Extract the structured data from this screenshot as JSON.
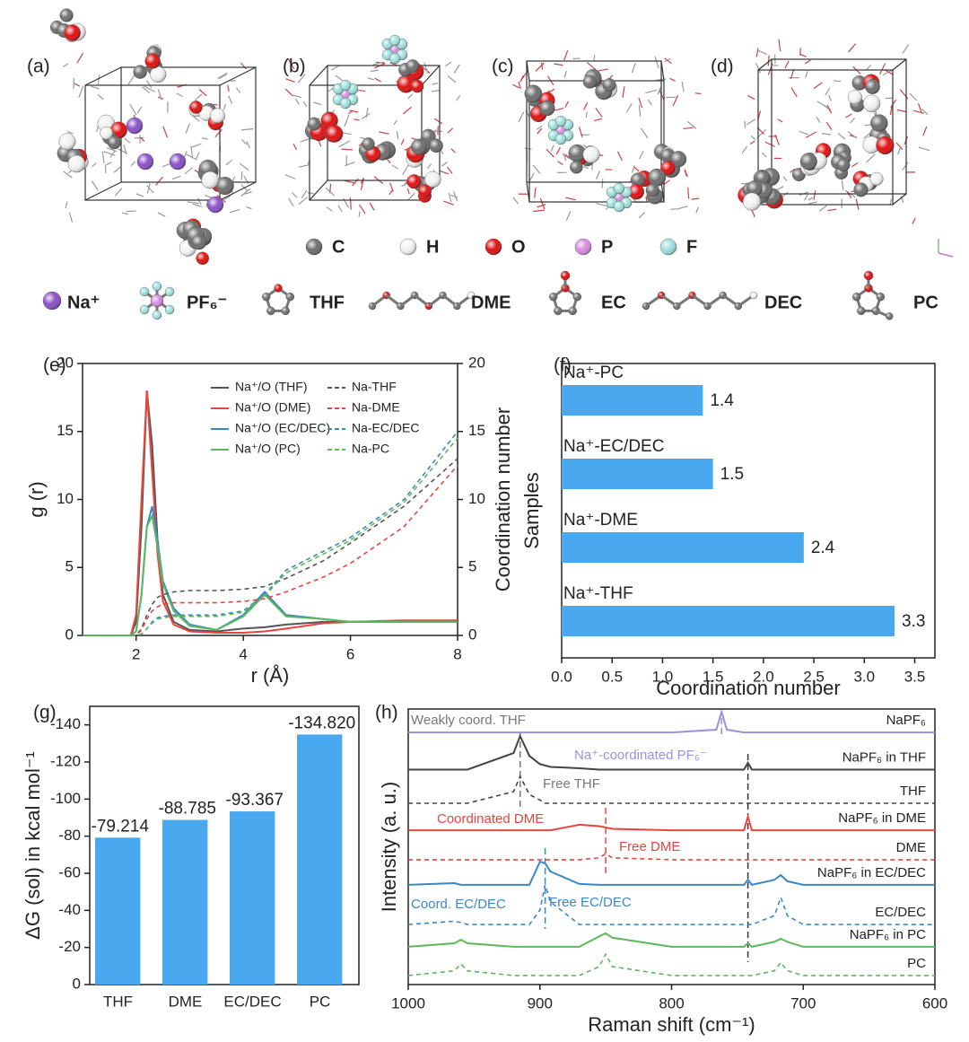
{
  "panel_labels": [
    "(a)",
    "(b)",
    "(c)",
    "(d)"
  ],
  "atom_legend": [
    {
      "label": "C",
      "color": "#6e6e6e"
    },
    {
      "label": "H",
      "color": "#f2f2f2"
    },
    {
      "label": "O",
      "color": "#e01010"
    },
    {
      "label": "P",
      "color": "#d98be0"
    },
    {
      "label": "F",
      "color": "#9fe0dc"
    }
  ],
  "molecule_legend": [
    "Na⁺",
    "PF₆⁻",
    "THF",
    "DME",
    "EC",
    "DEC",
    "PC"
  ],
  "chart_data": [
    {
      "type": "line",
      "panel": "(e)",
      "legend": "upper center",
      "xlabel": "r (Å)",
      "ylabel": "g (r)",
      "y2label": "Coordination number",
      "xlim": [
        1,
        8
      ],
      "xticks": [
        2,
        4,
        6,
        8
      ],
      "ylim": [
        0,
        20
      ],
      "yticks": [
        0,
        5,
        10,
        15,
        20
      ],
      "y2lim": [
        0,
        20
      ],
      "y2ticks": [
        0,
        5,
        10,
        15,
        20
      ],
      "x": [
        1,
        1.9,
        2.0,
        2.1,
        2.2,
        2.3,
        2.4,
        2.5,
        2.7,
        3.0,
        3.5,
        4.0,
        4.4,
        4.8,
        5.5,
        6,
        7,
        8
      ],
      "series": [
        {
          "name": "Na⁺/O (THF)",
          "color": "#555555",
          "style": "solid",
          "values": [
            0,
            0,
            1,
            8,
            18,
            14,
            7,
            3,
            1,
            0.4,
            0.3,
            0.5,
            0.6,
            0.8,
            1,
            1,
            1,
            1
          ]
        },
        {
          "name": "Na⁺/O (DME)",
          "color": "#e8453c",
          "style": "solid",
          "values": [
            0,
            0,
            1.5,
            10,
            18,
            12,
            6,
            2.5,
            0.8,
            0.3,
            0.2,
            0.2,
            0.3,
            0.5,
            0.9,
            1,
            1.1,
            1.1
          ]
        },
        {
          "name": "Na⁺/O (EC/DEC)",
          "color": "#3a87c8",
          "style": "solid",
          "values": [
            0,
            0,
            0.3,
            3,
            8,
            9.5,
            7,
            4,
            2,
            0.8,
            0.4,
            1.5,
            3.2,
            1.5,
            1.2,
            1,
            1,
            1
          ]
        },
        {
          "name": "Na⁺/O (PC)",
          "color": "#5cb85c",
          "style": "solid",
          "values": [
            0,
            0,
            0.3,
            3,
            8,
            8.8,
            6.5,
            3.8,
            1.8,
            0.7,
            0.4,
            1.4,
            3,
            1.4,
            1.2,
            1,
            1,
            1
          ]
        },
        {
          "name": "Na-THF",
          "color": "#555555",
          "style": "dashed",
          "axis": "y2",
          "values": [
            0,
            0,
            0,
            0.5,
            1.5,
            2.3,
            2.8,
            3.0,
            3.2,
            3.3,
            3.3,
            3.4,
            3.6,
            4.2,
            5.5,
            6.8,
            9.5,
            13
          ]
        },
        {
          "name": "Na-DME",
          "color": "#e8453c",
          "style": "dashed",
          "axis": "y2",
          "values": [
            0,
            0,
            0,
            0.4,
            1.2,
            1.8,
            2.1,
            2.3,
            2.4,
            2.4,
            2.4,
            2.5,
            2.7,
            3.2,
            4.3,
            5.3,
            8,
            12.5
          ]
        },
        {
          "name": "Na-EC/DEC",
          "color": "#3a87c8",
          "style": "dashed",
          "axis": "y2",
          "values": [
            0,
            0,
            0,
            0.1,
            0.5,
            1,
            1.3,
            1.4,
            1.5,
            1.5,
            1.5,
            1.8,
            3.0,
            4.8,
            6.2,
            7.2,
            10,
            15
          ]
        },
        {
          "name": "Na-PC",
          "color": "#5cb85c",
          "style": "dashed",
          "axis": "y2",
          "values": [
            0,
            0,
            0,
            0.1,
            0.5,
            0.9,
            1.2,
            1.3,
            1.4,
            1.4,
            1.4,
            1.7,
            2.9,
            4.6,
            6,
            7,
            9.8,
            14.5
          ]
        }
      ]
    },
    {
      "type": "barh",
      "panel": "(f)",
      "color": "#4aa8ee",
      "xlabel": "Coordination number",
      "ylabel": "Samples",
      "categories": [
        "Na⁺-PC",
        "Na⁺-EC/DEC",
        "Na⁺-DME",
        "Na⁺-THF"
      ],
      "values": [
        1.4,
        1.5,
        2.4,
        3.3
      ],
      "xlim": [
        0,
        3.7
      ],
      "xticks": [
        {
          "value": 0,
          "label": "0.0"
        },
        0.5,
        {
          "value": 1,
          "label": "1.0"
        },
        1.5,
        {
          "value": 2,
          "label": "2.0"
        },
        2.5,
        {
          "value": 3,
          "label": "3.0"
        },
        3.5
      ]
    },
    {
      "type": "bar",
      "panel": "(g)",
      "color": "#4aa8ee",
      "ylabel": "ΔG (sol) in kcal mol⁻¹",
      "categories": [
        "THF",
        "DME",
        "EC/DEC",
        "PC"
      ],
      "values": [
        -79.214,
        -88.785,
        -93.367,
        -134.82
      ],
      "value_labels": [
        "-79.214",
        "-88.785",
        "-93.367",
        "-134.820"
      ],
      "ylim": [
        0,
        -150
      ],
      "yticks": [
        0,
        -20,
        -40,
        -60,
        -80,
        -100,
        -120,
        -140
      ]
    },
    {
      "type": "line",
      "panel": "(h)",
      "legend": "series end",
      "xlabel": "Raman shift (cm⁻¹)",
      "ylabel": "Intensity (a. u.)",
      "xlim": [
        1000,
        600
      ],
      "xticks": [
        1000,
        900,
        800,
        700,
        600
      ],
      "ylim": [
        0,
        100
      ],
      "x": [
        1000,
        965,
        960,
        955,
        920,
        915,
        908,
        900,
        896,
        892,
        870,
        855,
        850,
        845,
        800,
        766,
        762,
        758,
        745,
        742,
        739,
        722,
        717,
        712,
        700,
        600
      ],
      "series": [
        {
          "name": "NaPF₆",
          "color": "#9b8fe0",
          "style": "solid",
          "values": [
            91.5,
            91.5,
            91.5,
            91.5,
            91.5,
            91.5,
            91.5,
            91.5,
            91.5,
            91.5,
            91.5,
            91.5,
            91.5,
            91.5,
            91.5,
            92.5,
            99,
            92.5,
            91.5,
            91.5,
            91.5,
            91.5,
            91.5,
            91.5,
            91.5,
            91.5
          ]
        },
        {
          "name": "NaPF₆ in THF",
          "color": "#444444",
          "style": "solid",
          "values": [
            78,
            78,
            78,
            78,
            84,
            90.2,
            83,
            80,
            79.5,
            79,
            78.5,
            78,
            78,
            78,
            78,
            78,
            78,
            78,
            78,
            80.5,
            78,
            78,
            78,
            78,
            78,
            78
          ]
        },
        {
          "name": "THF",
          "color": "#444444",
          "style": "dashed",
          "values": [
            65.8,
            65.8,
            65.8,
            65.8,
            70,
            75.6,
            69,
            67,
            65.8,
            65.8,
            65.8,
            65.8,
            65.8,
            65.8,
            65.8,
            65.8,
            65.8,
            65.8,
            65.8,
            65.8,
            65.8,
            65.8,
            65.8,
            65.8,
            65.8,
            65.8
          ]
        },
        {
          "name": "NaPF₆ in DME",
          "color": "#e8453c",
          "style": "solid",
          "values": [
            56,
            56,
            56,
            56,
            56,
            56,
            56,
            56,
            56,
            56,
            58,
            57.5,
            57,
            56.5,
            56,
            56,
            56,
            56,
            56,
            60.9,
            56,
            56,
            56,
            56,
            56,
            56
          ]
        },
        {
          "name": "DME",
          "color": "#e8453c",
          "style": "dashed",
          "values": [
            45.3,
            45.3,
            45.3,
            45.3,
            45.3,
            45.3,
            45.3,
            45.3,
            45.3,
            45.3,
            45.3,
            46,
            47.5,
            46,
            45.3,
            45.3,
            45.3,
            45.3,
            45.3,
            45.3,
            45.3,
            45.3,
            45.3,
            45.3,
            45.3,
            45.3
          ]
        },
        {
          "name": "NaPF₆ in EC/DEC",
          "color": "#3a87c8",
          "style": "solid",
          "values": [
            36.2,
            36.8,
            36.2,
            36.2,
            36.2,
            36.2,
            36.2,
            44.6,
            44,
            41,
            36.5,
            36.2,
            36.2,
            36.2,
            36.2,
            36.2,
            36.2,
            36.2,
            36.2,
            38,
            36.2,
            38,
            39.7,
            37.5,
            36.2,
            36.2
          ]
        },
        {
          "name": "EC/DEC",
          "color": "#3a87c8",
          "style": "dashed",
          "values": [
            21.8,
            23,
            22.5,
            21.8,
            21.8,
            21.8,
            21.8,
            27,
            36.2,
            30,
            21.8,
            21.8,
            21.8,
            21.8,
            21.8,
            21.8,
            21.8,
            21.8,
            21.8,
            21.8,
            21.8,
            25,
            31.6,
            25,
            21.8,
            21.8
          ]
        },
        {
          "name": "NaPF₆ in PC",
          "color": "#5cb85c",
          "style": "solid",
          "values": [
            13.7,
            15,
            16.3,
            15,
            13.7,
            13.7,
            13.7,
            13.7,
            13.7,
            13.7,
            13.7,
            17.5,
            18.6,
            17,
            13.7,
            13.7,
            13.7,
            13.7,
            13.7,
            15,
            13.7,
            15.5,
            16.6,
            15.5,
            13.7,
            13.7
          ]
        },
        {
          "name": "PC",
          "color": "#5cb85c",
          "style": "dashed",
          "values": [
            3.3,
            5,
            7.5,
            5,
            3.3,
            3.3,
            3.3,
            3.3,
            3.3,
            3.3,
            3.3,
            6.5,
            11,
            6.5,
            3.3,
            3.3,
            3.3,
            3.3,
            3.3,
            3.3,
            3.3,
            5,
            8,
            5,
            3.3,
            3.3
          ]
        }
      ],
      "vlines": [
        {
          "x": 915,
          "color": "#777777"
        },
        {
          "x": 762,
          "color": "#9b8fe0"
        },
        {
          "x": 850,
          "color": "#e8453c"
        },
        {
          "x": 896,
          "color": "#3a87c8"
        },
        {
          "x": 742,
          "color": "#333333"
        }
      ],
      "annotations": [
        {
          "text": "Weakly coord. THF",
          "color": "#777777"
        },
        {
          "text": "Na⁺-coordinated PF₆⁻",
          "color": "#9b8fe0"
        },
        {
          "text": "Free THF",
          "color": "#777777"
        },
        {
          "text": "Coordinated DME",
          "color": "#e8453c"
        },
        {
          "text": "Free DME",
          "color": "#e8453c"
        },
        {
          "text": "Coord. EC/DEC",
          "color": "#3a87c8"
        },
        {
          "text": "Free EC/DEC",
          "color": "#3a87c8"
        }
      ]
    }
  ]
}
